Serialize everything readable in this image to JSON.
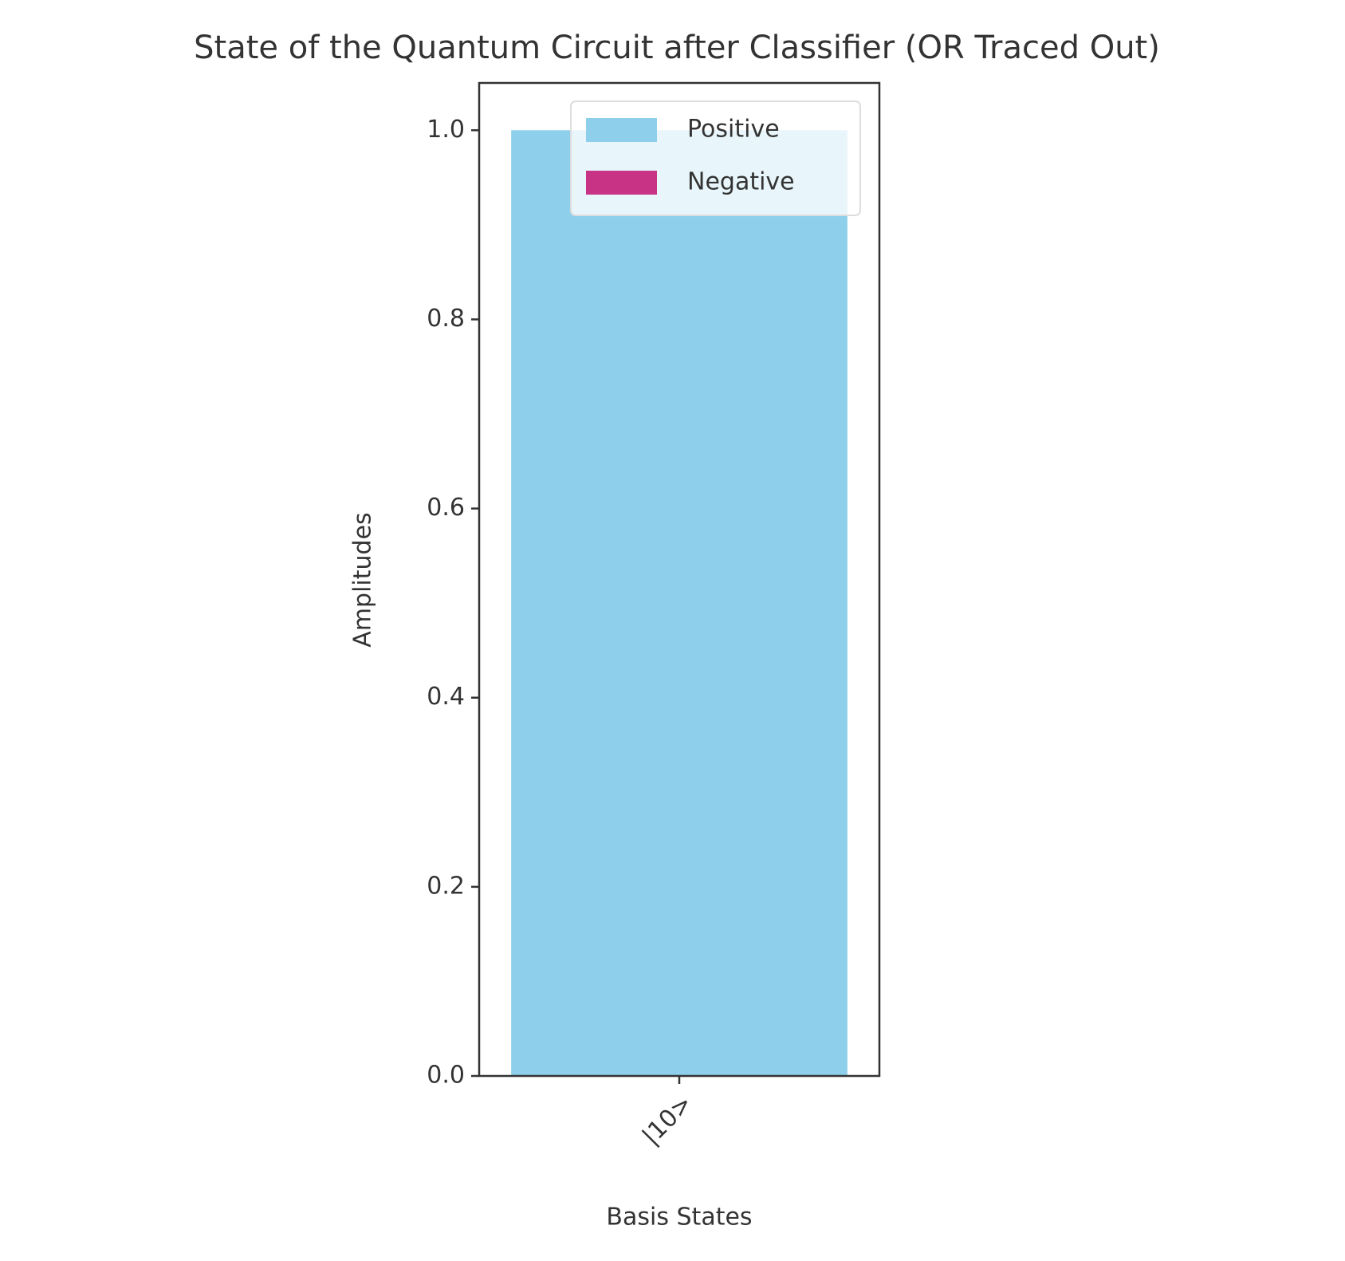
{
  "chart_data": {
    "type": "bar",
    "title": "State of the Quantum Circuit after Classifier (OR Traced Out)",
    "x_label": "Basis States",
    "y_label": "Amplitudes",
    "categories": [
      "|10>"
    ],
    "series": [
      {
        "name": "Positive",
        "color": "#8ecfeb",
        "values": [
          1.0
        ]
      },
      {
        "name": "Negative",
        "color": "#c83385",
        "values": [
          0
        ]
      }
    ],
    "ylim": [
      0,
      1.05
    ],
    "yticks": [
      {
        "value": 0,
        "label": "0.0"
      },
      0.2,
      0.4,
      0.6,
      0.8,
      {
        "value": 1,
        "label": "1.0"
      }
    ],
    "legend": "upper right",
    "grid": false
  }
}
